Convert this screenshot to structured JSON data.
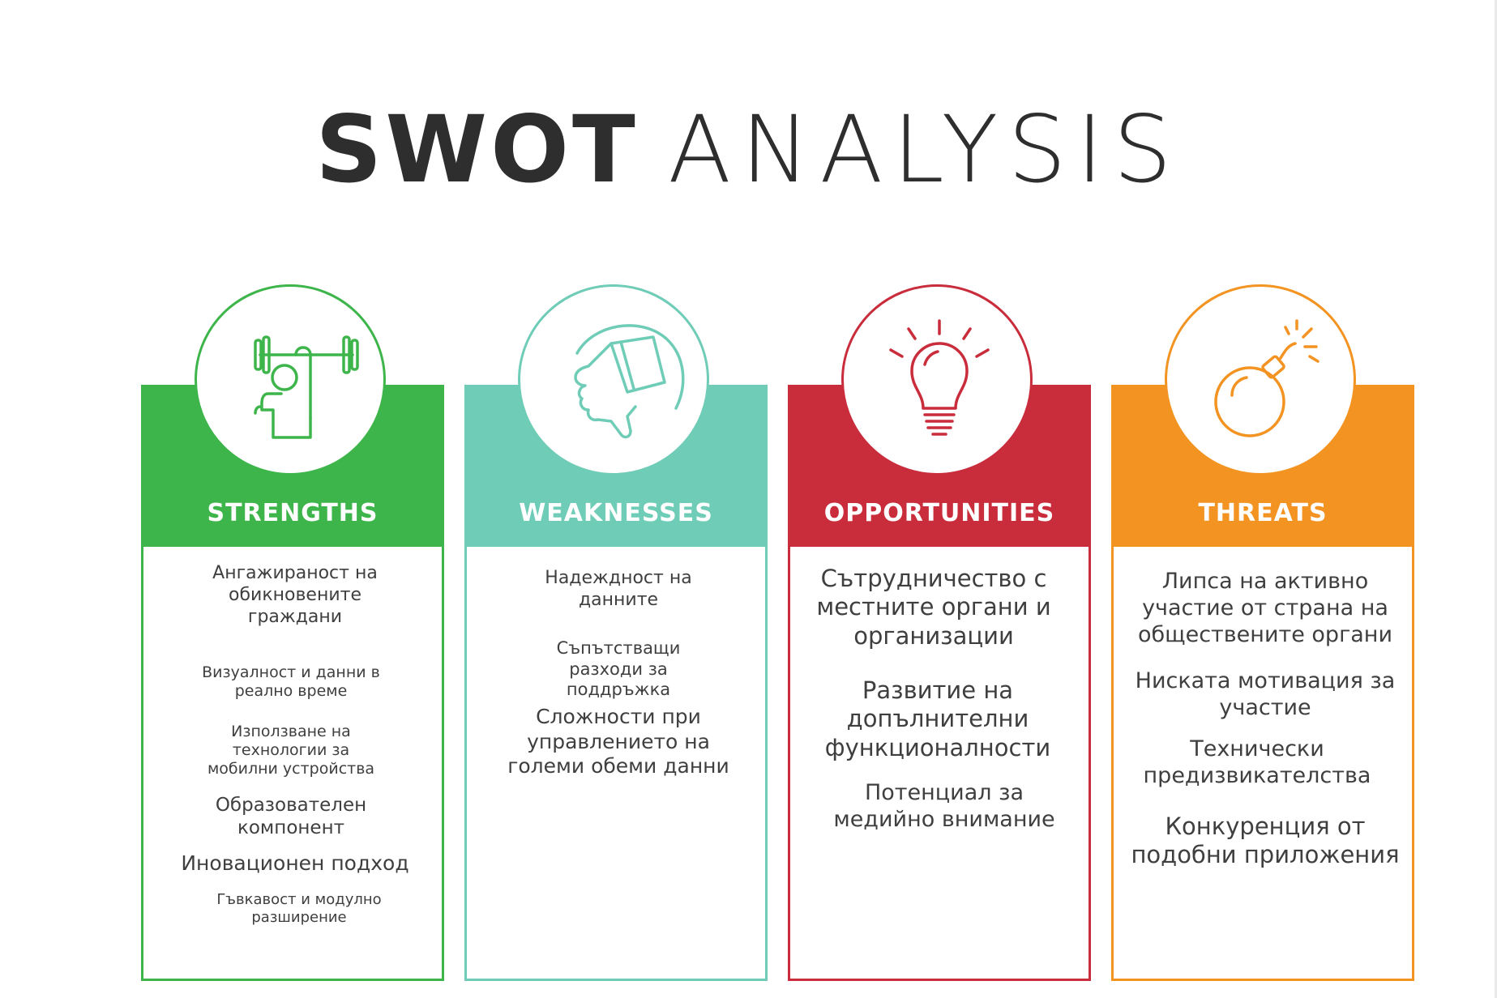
{
  "title": {
    "bold": "SWOT",
    "light": "ANALYSIS"
  },
  "colors": {
    "strengths": "#3db54a",
    "weaknesses": "#6fccb7",
    "opportunities": "#c92d3c",
    "threats": "#f39321"
  },
  "strengths": {
    "label": "STRENGTHS",
    "icon": "weightlifter-icon",
    "items": [
      "Ангажираност на обикновените граждани",
      "Визуалност и данни в реално време",
      "Използване на технологии за мобилни устройства",
      "Образователен компонент",
      "Иновационен подход",
      "Гъвкавост и модулно разширение"
    ]
  },
  "weaknesses": {
    "label": "WEAKNESSES",
    "icon": "thumbs-down-icon",
    "items": [
      "Надеждност на данните",
      "Съпътстващи разходи за поддръжка",
      "Сложности при управлението на големи обеми данни"
    ]
  },
  "opportunities": {
    "label": "OPPORTUNITIES",
    "icon": "lightbulb-icon",
    "items": [
      "Сътрудничество с местните органи и организации",
      "Развитие на допълнителни функционалности",
      "Потенциал за медийно внимание"
    ]
  },
  "threats": {
    "label": "THREATS",
    "icon": "bomb-icon",
    "items": [
      "Липса на активно участие от страна на обществените органи",
      "Ниската мотивация за участие",
      "Технически предизвикателства",
      "Конкуренция от подобни приложения"
    ]
  }
}
